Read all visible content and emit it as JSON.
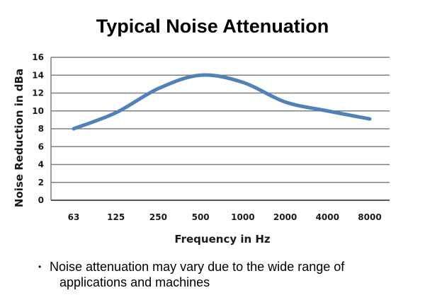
{
  "chart_data": {
    "type": "line",
    "title": "Typical Noise Attenuation",
    "xlabel": "Frequency in Hz",
    "ylabel": "Noise Reduction in dBa",
    "categories": [
      "63",
      "125",
      "250",
      "500",
      "1000",
      "2000",
      "4000",
      "8000"
    ],
    "series": [
      {
        "values": [
          8,
          9.8,
          12.5,
          14,
          13.2,
          11,
          10,
          9.1
        ]
      }
    ],
    "ylim": [
      0,
      16
    ],
    "yticks": [
      "0",
      "2",
      "4",
      "6",
      "8",
      "10",
      "12",
      "14",
      "16"
    ],
    "grid": true,
    "line_color": "#4f81bd"
  },
  "note": {
    "bullet": "•",
    "line1": "Noise attenuation may vary due to the wide range of",
    "line2": "applications and machines"
  }
}
